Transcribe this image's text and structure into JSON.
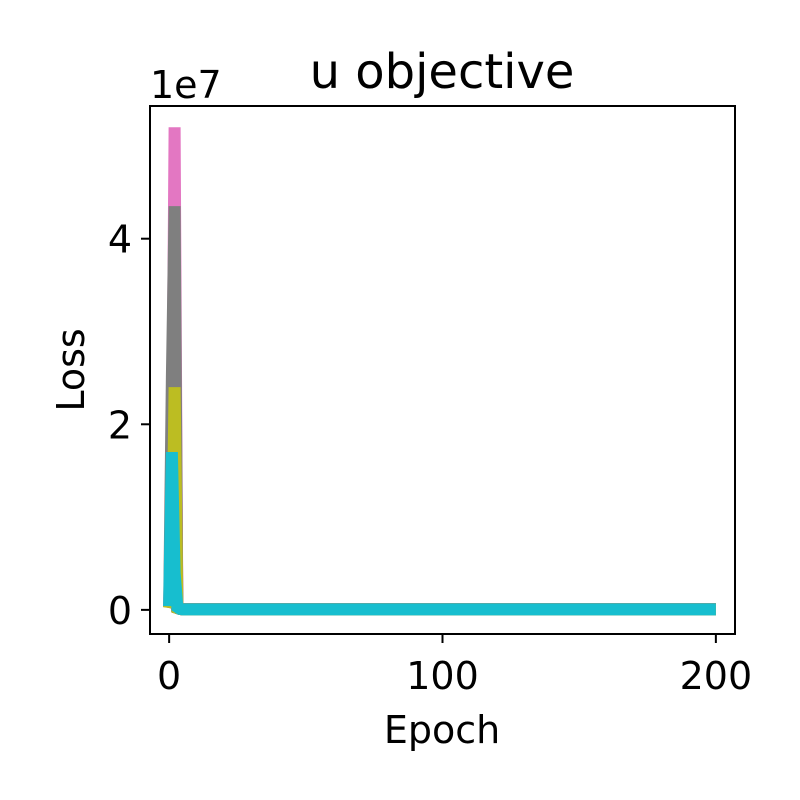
{
  "chart_data": {
    "type": "line",
    "title": "u objective",
    "xlabel": "Epoch",
    "ylabel": "Loss",
    "y_offset_text": "1e7",
    "xlim": [
      -7,
      207
    ],
    "ylim": [
      -2.6,
      54.3
    ],
    "y_scale_factor": 10000000,
    "x_ticks": [
      {
        "value": 0,
        "label": "0"
      },
      {
        "value": 100,
        "label": "100"
      },
      {
        "value": 200,
        "label": "200"
      }
    ],
    "y_ticks": [
      {
        "value": 0,
        "label": "0"
      },
      {
        "value": 20,
        "label": "2"
      },
      {
        "value": 40,
        "label": "4"
      }
    ],
    "grid": false,
    "legend": false,
    "series": [
      {
        "color": "#1f77b4",
        "x": [
          0,
          1,
          2,
          3,
          4,
          5,
          200
        ],
        "y": [
          0.5,
          3.0,
          7.5,
          0.2,
          0.1,
          0.05,
          0.05
        ]
      },
      {
        "color": "#ff7f0e",
        "x": [
          0,
          1,
          2,
          3,
          4,
          5,
          200
        ],
        "y": [
          0.3,
          2.0,
          37.5,
          0.3,
          0.1,
          0.05,
          0.05
        ]
      },
      {
        "color": "#2ca02c",
        "x": [
          0,
          1,
          2,
          3,
          4,
          5,
          200
        ],
        "y": [
          0.4,
          1.2,
          20.0,
          0.2,
          0.1,
          0.05,
          0.05
        ]
      },
      {
        "color": "#d62728",
        "x": [
          0,
          1,
          2,
          3,
          4,
          5,
          200
        ],
        "y": [
          0.2,
          1.5,
          18.0,
          0.3,
          0.1,
          0.05,
          0.05
        ]
      },
      {
        "color": "#9467bd",
        "x": [
          0,
          1,
          2,
          3,
          4,
          5,
          200
        ],
        "y": [
          0.6,
          0.9,
          30.0,
          0.2,
          0.1,
          0.05,
          0.05
        ]
      },
      {
        "color": "#8c564b",
        "x": [
          0,
          1,
          2,
          3,
          4,
          5,
          200
        ],
        "y": [
          0.3,
          0.7,
          15.0,
          0.2,
          0.1,
          0.05,
          0.05
        ]
      },
      {
        "color": "#e377c2",
        "x": [
          0,
          1,
          2,
          3,
          4,
          5,
          200
        ],
        "y": [
          0.4,
          13.5,
          52.0,
          0.3,
          0.1,
          0.05,
          0.05
        ]
      },
      {
        "color": "#7f7f7f",
        "x": [
          0,
          1,
          2,
          3,
          4,
          5,
          200
        ],
        "y": [
          0.3,
          25.0,
          43.5,
          0.2,
          0.1,
          0.05,
          0.05
        ]
      },
      {
        "color": "#bcbd22",
        "x": [
          0,
          1,
          2,
          3,
          4,
          5,
          200
        ],
        "y": [
          0.2,
          2.5,
          24.0,
          0.2,
          0.1,
          0.05,
          0.05
        ]
      },
      {
        "color": "#17becf",
        "x": [
          0,
          1,
          2,
          3,
          4,
          5,
          200
        ],
        "y": [
          0.4,
          17.0,
          4.0,
          0.3,
          0.1,
          0.05,
          0.05
        ]
      }
    ]
  }
}
